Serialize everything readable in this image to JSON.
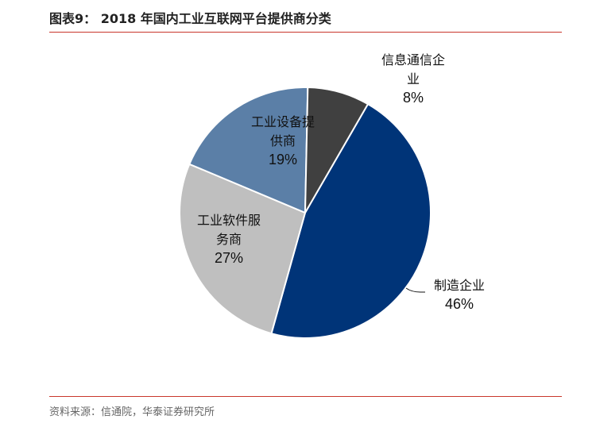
{
  "header": {
    "title": "图表9：  2018 年国内工业互联网平台提供商分类"
  },
  "footer": {
    "source": "资料来源：信通院，华泰证券研究所"
  },
  "chart_data": {
    "type": "pie",
    "title": "2018 年国内工业互联网平台提供商分类",
    "start_angle_deg": 30,
    "direction": "clockwise",
    "slices": [
      {
        "name": "制造企业",
        "label_lines": [
          "制造企业"
        ],
        "value": 46,
        "percent_label": "46%",
        "color": "#003478"
      },
      {
        "name": "工业软件服务商",
        "label_lines": [
          "工业软件服",
          "务商"
        ],
        "value": 27,
        "percent_label": "27%",
        "color": "#bfbfbf"
      },
      {
        "name": "工业设备提供商",
        "label_lines": [
          "工业设备提",
          "供商"
        ],
        "value": 19,
        "percent_label": "19%",
        "color": "#5b7fa7"
      },
      {
        "name": "信息通信企业",
        "label_lines": [
          "信息通信企",
          "业"
        ],
        "value": 8,
        "percent_label": "8%",
        "color": "#404040"
      }
    ]
  }
}
